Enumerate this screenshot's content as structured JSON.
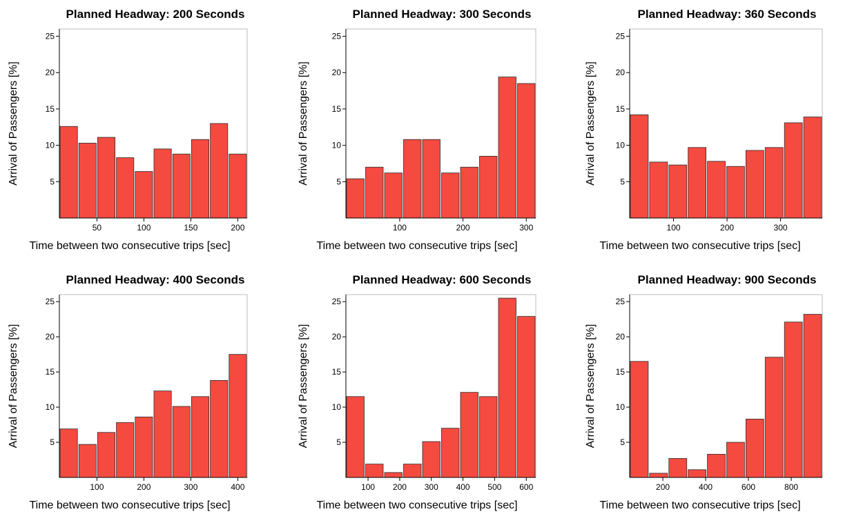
{
  "colors": {
    "bar_fill": "#f54a40",
    "bar_stroke": "#2b2b2b",
    "frame": "#bdbdbd",
    "background": "#ffffff"
  },
  "chart_data": [
    {
      "type": "bar",
      "title": "Planned Headway: 200 Seconds",
      "xlabel": "Time between two consecutive trips [sec]",
      "ylabel": "Arrival of Passengers [%]",
      "x": [
        20,
        40,
        60,
        80,
        100,
        120,
        140,
        160,
        180,
        200
      ],
      "values": [
        12.6,
        10.3,
        11.1,
        8.3,
        6.4,
        9.5,
        8.8,
        10.8,
        13.0,
        8.8
      ],
      "bin_width": 20,
      "xlim": [
        10,
        210
      ],
      "ylim": [
        0,
        26
      ],
      "xticks": [
        50,
        100,
        150,
        200
      ],
      "yticks": [
        5,
        10,
        15,
        20,
        25
      ]
    },
    {
      "type": "bar",
      "title": "Planned Headway: 300 Seconds",
      "xlabel": "Time between two consecutive trips [sec]",
      "ylabel": "Arrival of Passengers [%]",
      "x": [
        30,
        60,
        90,
        120,
        150,
        180,
        210,
        240,
        270,
        300
      ],
      "values": [
        5.4,
        7.0,
        6.2,
        10.8,
        10.8,
        6.2,
        7.0,
        8.5,
        19.4,
        18.5
      ],
      "bin_width": 30,
      "xlim": [
        15,
        315
      ],
      "ylim": [
        0,
        26
      ],
      "xticks": [
        100,
        200,
        300
      ],
      "yticks": [
        5,
        10,
        15,
        20,
        25
      ]
    },
    {
      "type": "bar",
      "title": "Planned Headway: 360 Seconds",
      "xlabel": "Time between two consecutive trips [sec]",
      "ylabel": "Arrival of Passengers [%]",
      "x": [
        36,
        72,
        108,
        144,
        180,
        216,
        252,
        288,
        324,
        360
      ],
      "values": [
        14.2,
        7.7,
        7.3,
        9.7,
        7.8,
        7.1,
        9.3,
        9.7,
        13.1,
        13.9
      ],
      "bin_width": 36,
      "xlim": [
        18,
        378
      ],
      "ylim": [
        0,
        26
      ],
      "xticks": [
        100,
        200,
        300
      ],
      "yticks": [
        5,
        10,
        15,
        20,
        25
      ]
    },
    {
      "type": "bar",
      "title": "Planned Headway: 400 Seconds",
      "xlabel": "Time between two consecutive trips [sec]",
      "ylabel": "Arrival of Passengers [%]",
      "x": [
        40,
        80,
        120,
        160,
        200,
        240,
        280,
        320,
        360,
        400
      ],
      "values": [
        6.9,
        4.7,
        6.4,
        7.8,
        8.6,
        12.3,
        10.1,
        11.5,
        13.8,
        17.5
      ],
      "bin_width": 40,
      "xlim": [
        20,
        420
      ],
      "ylim": [
        0,
        26
      ],
      "xticks": [
        100,
        200,
        300,
        400
      ],
      "yticks": [
        5,
        10,
        15,
        20,
        25
      ]
    },
    {
      "type": "bar",
      "title": "Planned Headway: 600 Seconds",
      "xlabel": "Time between two consecutive trips [sec]",
      "ylabel": "Arrival of Passengers [%]",
      "x": [
        60,
        120,
        180,
        240,
        300,
        360,
        420,
        480,
        540,
        600
      ],
      "values": [
        11.5,
        1.9,
        0.7,
        1.9,
        5.1,
        7.0,
        12.1,
        11.5,
        25.5,
        22.9
      ],
      "bin_width": 60,
      "xlim": [
        30,
        630
      ],
      "ylim": [
        0,
        26
      ],
      "xticks": [
        100,
        200,
        300,
        400,
        500,
        600
      ],
      "yticks": [
        5,
        10,
        15,
        20,
        25
      ]
    },
    {
      "type": "bar",
      "title": "Planned Headway: 900 Seconds",
      "xlabel": "Time between two consecutive trips [sec]",
      "ylabel": "Arrival of Passengers [%]",
      "x": [
        90,
        180,
        270,
        360,
        450,
        540,
        630,
        720,
        810,
        900
      ],
      "values": [
        16.5,
        0.6,
        2.7,
        1.1,
        3.3,
        5.0,
        8.3,
        17.1,
        22.1,
        23.2
      ],
      "bin_width": 90,
      "xlim": [
        45,
        945
      ],
      "ylim": [
        0,
        26
      ],
      "xticks": [
        200,
        400,
        600,
        800
      ],
      "yticks": [
        5,
        10,
        15,
        20,
        25
      ]
    }
  ]
}
